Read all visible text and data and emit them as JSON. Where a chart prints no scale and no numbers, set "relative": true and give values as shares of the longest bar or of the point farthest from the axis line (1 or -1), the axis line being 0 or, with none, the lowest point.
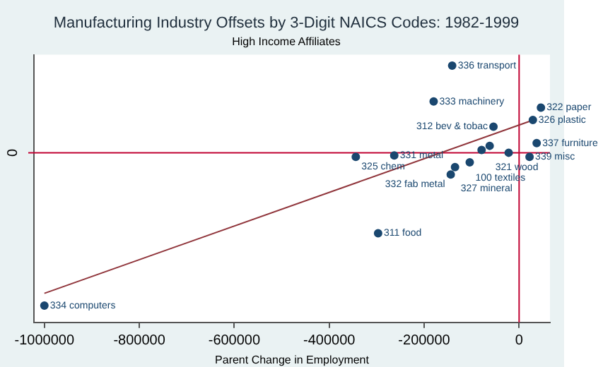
{
  "chart_data": {
    "type": "scatter",
    "title": "Manufacturing Industry Offsets by 3-Digit NAICS Codes: 1982-1999",
    "subtitle": "High Income Affiliates",
    "xlabel": "Parent Change in Employment",
    "relative": true,
    "xlim": [
      -1022000,
      65000
    ],
    "xticks": [
      -1000000,
      -800000,
      -600000,
      -400000,
      -200000,
      0
    ],
    "series": [
      {
        "marker": "circle",
        "color": "#1a476f",
        "x": [
          -141000,
          -180000,
          46000,
          29000,
          -54000,
          37000,
          -62000,
          -79000,
          -22000,
          22000,
          -344000,
          -263000,
          -104000,
          -135000,
          -144000,
          -297000,
          -1000000
        ],
        "values": [
          0.57,
          0.335,
          0.295,
          0.214,
          0.17,
          0.063,
          0.045,
          0.018,
          0,
          -0.027,
          -0.027,
          -0.018,
          -0.063,
          -0.094,
          -0.143,
          -0.527,
          -1
        ]
      },
      {
        "type": "line",
        "marker": "none",
        "color": "#90353b",
        "x": [
          -1000000,
          30000
        ],
        "values": [
          -0.92,
          0.214
        ]
      }
    ],
    "annotations": [
      {
        "text": "336 transport",
        "x": -141000,
        "y": 0.57
      },
      {
        "text": "333 machinery",
        "x": -180000,
        "y": 0.335
      },
      {
        "text": "322 paper",
        "x": 46000,
        "y": 0.295
      },
      {
        "text": "326 plastic",
        "x": 29000,
        "y": 0.214
      },
      {
        "text": "312 bev & tobac",
        "x": -54000,
        "y": 0.17
      },
      {
        "text": "337 furniture",
        "x": 37000,
        "y": 0.063
      },
      {
        "text": "321 wood",
        "x": -62000,
        "y": 0.045
      },
      {
        "text": "339 misc",
        "x": 22000,
        "y": -0.027
      },
      {
        "text": "325 chem",
        "x": -344000,
        "y": -0.027
      },
      {
        "text": "331 metal",
        "x": -263000,
        "y": -0.018
      },
      {
        "text": "100 textiles",
        "x": -104000,
        "y": -0.063
      },
      {
        "text": "327 mineral",
        "x": -135000,
        "y": -0.094
      },
      {
        "text": "332 fab metal",
        "x": -144000,
        "y": -0.143
      },
      {
        "text": "311 food",
        "x": -297000,
        "y": -0.527
      },
      {
        "text": "334 computers",
        "x": -1000000,
        "y": -1
      }
    ],
    "ref_lines": [
      {
        "axis": "y",
        "value": 0,
        "label": "0",
        "color": "#c10534"
      },
      {
        "axis": "x",
        "value": 0,
        "color": "#c10534"
      }
    ]
  }
}
